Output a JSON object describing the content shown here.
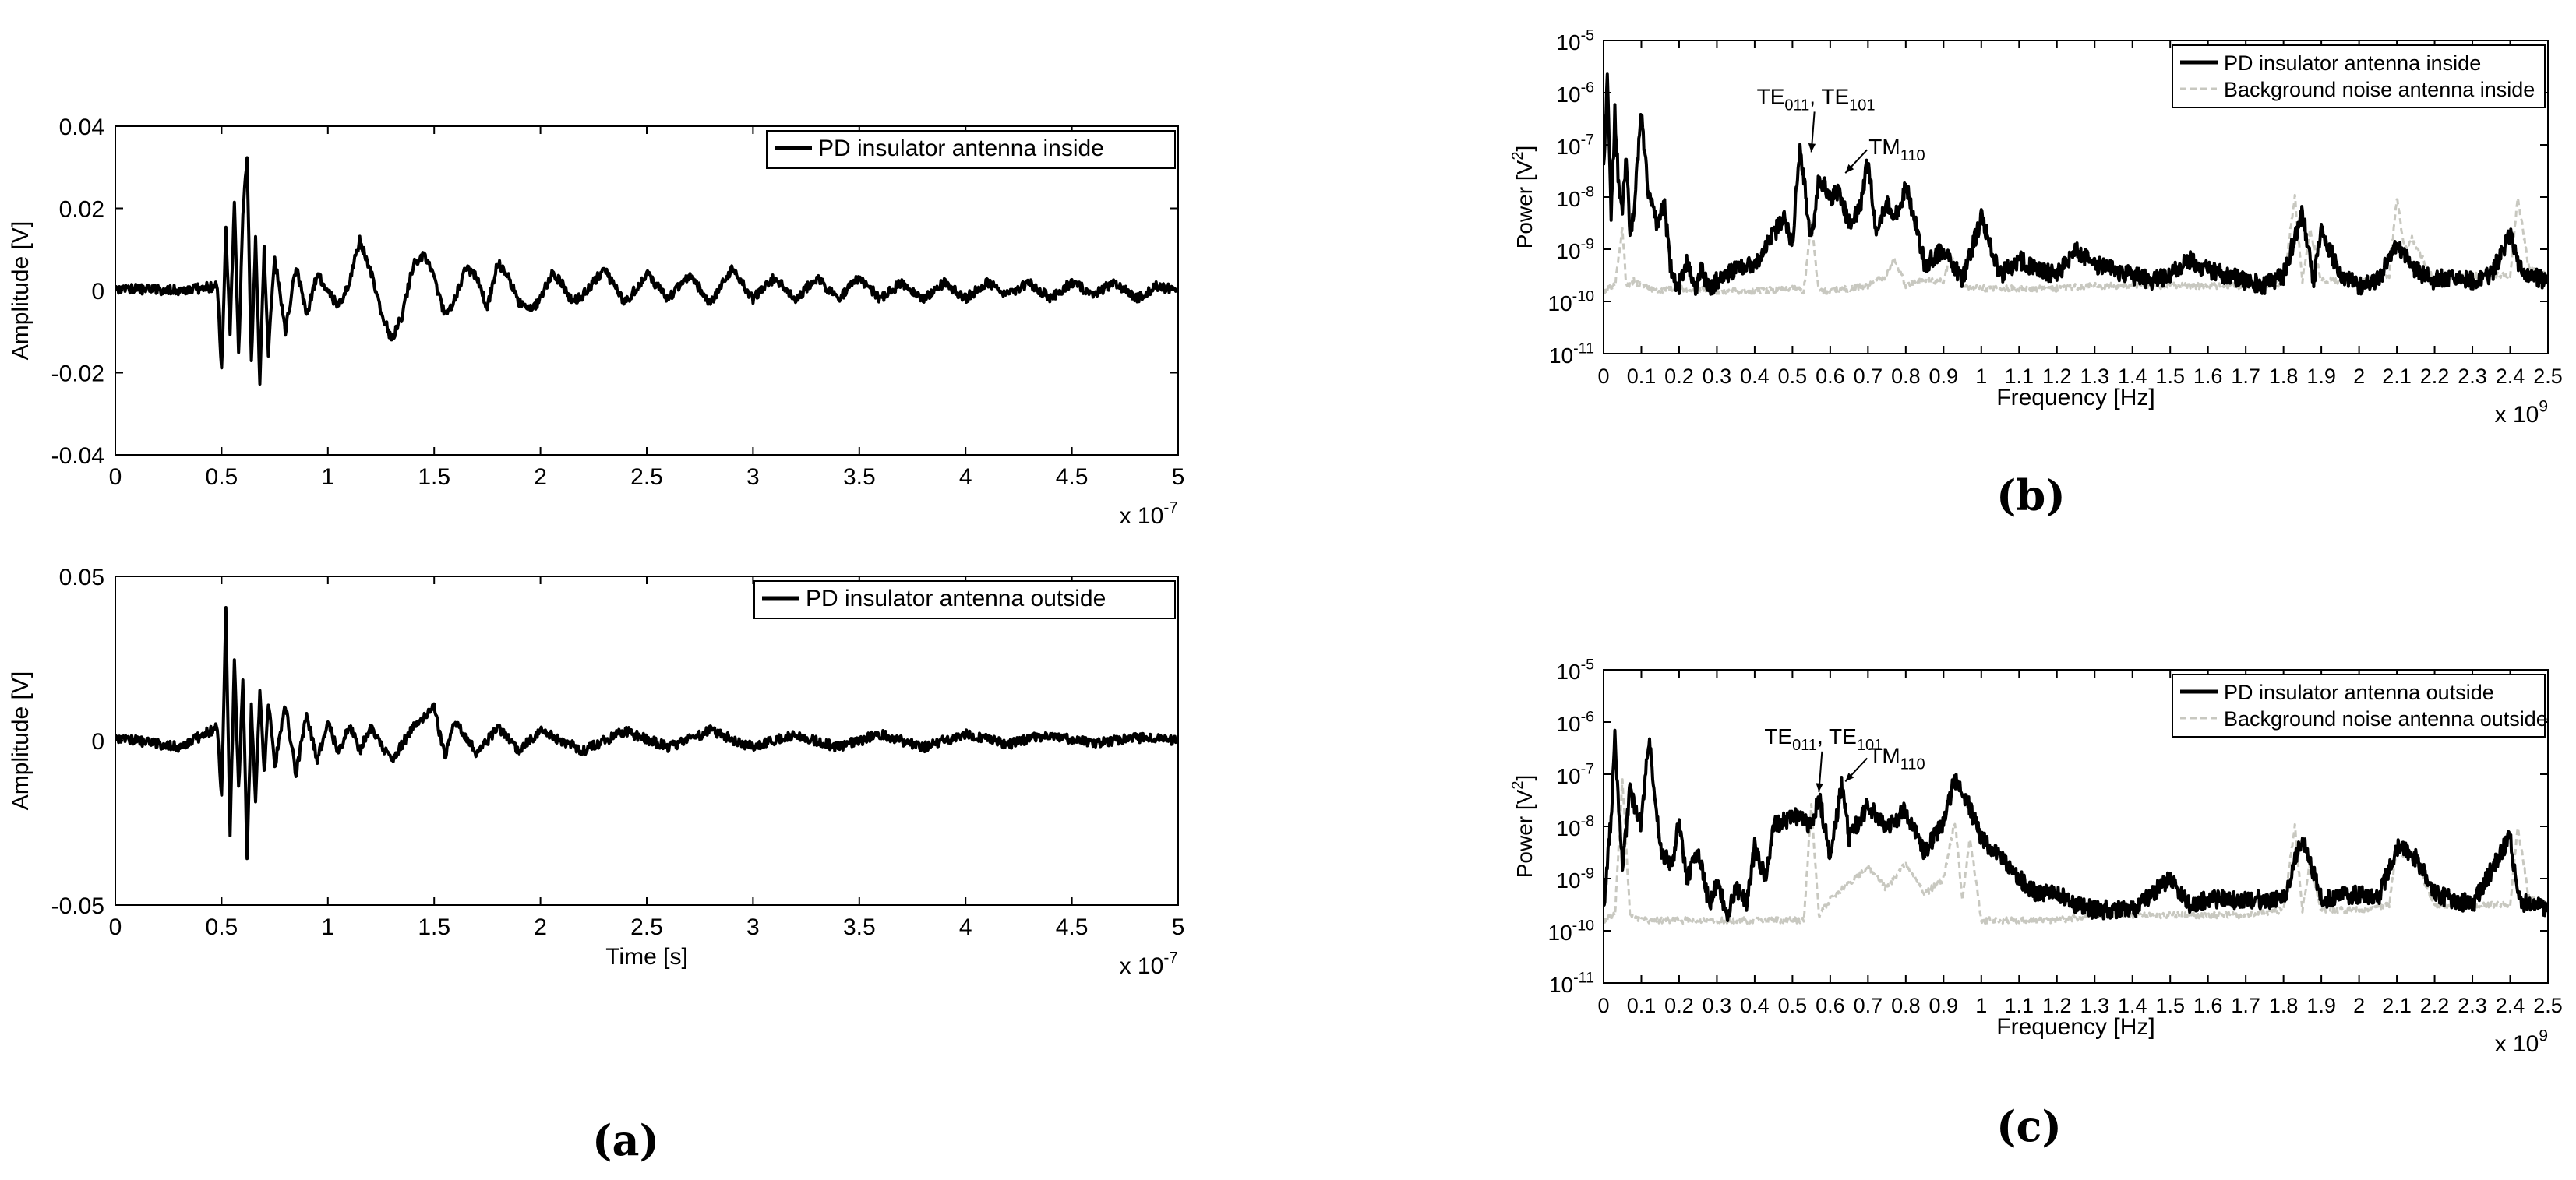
{
  "captions": {
    "a": "(a)",
    "b": "(b)",
    "c": "(c)"
  },
  "colors": {
    "signal": "#000000",
    "noise": "#c8c8c0"
  },
  "chart_data": [
    {
      "id": "time-inside",
      "type": "line",
      "xlabel": "",
      "ylabel": "Amplitude [V]",
      "xlim": [
        0,
        5
      ],
      "ylim": [
        -0.04,
        0.04
      ],
      "x_ticks": [
        "0",
        "0.5",
        "1",
        "1.5",
        "2",
        "2.5",
        "3",
        "3.5",
        "4",
        "4.5",
        "5"
      ],
      "y_ticks": [
        "-0.04",
        "-0.02",
        "0",
        "0.02",
        "0.04"
      ],
      "x_multiplier": "x 10",
      "x_multiplier_exp": "-7",
      "legend": "top-right",
      "series": [
        {
          "name": "PD insulator antenna inside",
          "x": [
            0,
            0.3,
            0.48,
            0.5,
            0.52,
            0.54,
            0.56,
            0.58,
            0.6,
            0.62,
            0.64,
            0.66,
            0.68,
            0.7,
            0.72,
            0.75,
            0.8,
            0.85,
            0.9,
            0.95,
            1.0,
            1.05,
            1.1,
            1.15,
            1.2,
            1.25,
            1.3,
            1.35,
            1.4,
            1.45,
            1.5,
            1.55,
            1.6,
            1.65,
            1.7,
            1.75,
            1.8,
            1.85,
            1.9,
            1.95,
            2.0,
            2.05,
            2.1,
            2.15,
            2.2,
            2.3,
            2.4,
            2.5,
            2.6,
            2.7,
            2.8,
            2.9,
            3.0,
            3.1,
            3.2,
            3.3,
            3.4,
            3.5,
            3.6,
            3.7,
            3.8,
            3.9,
            4.0,
            4.1,
            4.2,
            4.3,
            4.4,
            4.5,
            4.6,
            4.7,
            4.8,
            4.9,
            5.0
          ],
          "y": [
            0.0005,
            0,
            0.001,
            -0.02,
            0.015,
            -0.01,
            0.021,
            -0.016,
            0.018,
            0.033,
            -0.018,
            0.012,
            -0.023,
            0.01,
            -0.015,
            0.008,
            -0.01,
            0.006,
            -0.006,
            0.004,
            0.0,
            -0.004,
            0.002,
            0.012,
            0.005,
            -0.005,
            -0.012,
            -0.006,
            0.006,
            0.009,
            0.003,
            -0.006,
            -0.002,
            0.006,
            0.003,
            -0.004,
            0.007,
            0.003,
            -0.003,
            -0.005,
            -0.002,
            0.004,
            0.002,
            -0.003,
            -0.001,
            0.005,
            -0.003,
            0.004,
            -0.002,
            0.004,
            -0.003,
            0.005,
            -0.002,
            0.003,
            -0.002,
            0.003,
            -0.002,
            0.003,
            -0.002,
            0.002,
            -0.002,
            0.002,
            -0.002,
            0.002,
            -0.001,
            0.002,
            -0.002,
            0.002,
            -0.001,
            0.002,
            -0.002,
            0.001,
            0.0
          ]
        }
      ]
    },
    {
      "id": "time-outside",
      "type": "line",
      "xlabel": "Time [s]",
      "ylabel": "Amplitude [V]",
      "xlim": [
        0,
        5
      ],
      "ylim": [
        -0.05,
        0.05
      ],
      "x_ticks": [
        "0",
        "0.5",
        "1",
        "1.5",
        "2",
        "2.5",
        "3",
        "3.5",
        "4",
        "4.5",
        "5"
      ],
      "y_ticks": [
        "-0.05",
        "0",
        "0.05"
      ],
      "x_multiplier": "x 10",
      "x_multiplier_exp": "-7",
      "legend": "top-right",
      "series": [
        {
          "name": "PD insulator antenna outside",
          "x": [
            0,
            0.3,
            0.48,
            0.5,
            0.52,
            0.54,
            0.56,
            0.58,
            0.6,
            0.62,
            0.64,
            0.66,
            0.68,
            0.7,
            0.72,
            0.75,
            0.8,
            0.85,
            0.9,
            0.95,
            1.0,
            1.05,
            1.1,
            1.15,
            1.2,
            1.3,
            1.4,
            1.5,
            1.55,
            1.6,
            1.7,
            1.8,
            1.9,
            2.0,
            2.2,
            2.4,
            2.6,
            2.8,
            3.0,
            3.2,
            3.4,
            3.6,
            3.8,
            4.0,
            4.2,
            4.4,
            4.6,
            4.8,
            5.0
          ],
          "y": [
            0.001,
            -0.002,
            0.004,
            -0.018,
            0.04,
            -0.028,
            0.024,
            -0.015,
            0.018,
            -0.035,
            0.01,
            -0.02,
            0.015,
            -0.01,
            0.012,
            -0.008,
            0.011,
            -0.01,
            0.008,
            -0.006,
            0.006,
            -0.004,
            0.005,
            -0.003,
            0.004,
            -0.006,
            0.004,
            0.01,
            -0.005,
            0.006,
            -0.004,
            0.004,
            -0.003,
            0.003,
            -0.003,
            0.003,
            -0.002,
            0.003,
            -0.002,
            0.002,
            -0.002,
            0.002,
            -0.002,
            0.002,
            -0.001,
            0.002,
            -0.001,
            0.001,
            0.0
          ]
        }
      ]
    },
    {
      "id": "spectrum-inside",
      "type": "line",
      "xlabel": "Frequency [Hz]",
      "ylabel_text": "Power [V",
      "ylabel_sup": "2",
      "ylabel_end": "]",
      "yscale": "log",
      "xlim": [
        0,
        2.5
      ],
      "ylim_exp": [
        -11,
        -5
      ],
      "x_ticks": [
        "0",
        "0.1",
        "0.2",
        "0.3",
        "0.4",
        "0.5",
        "0.6",
        "0.7",
        "0.8",
        "0.9",
        "1",
        "1.1",
        "1.2",
        "1.3",
        "1.4",
        "1.5",
        "1.6",
        "1.7",
        "1.8",
        "1.9",
        "2",
        "2.1",
        "2.2",
        "2.3",
        "2.4",
        "2.5"
      ],
      "y_tick_base": "10",
      "y_tick_exps": [
        "-11",
        "-10",
        "-9",
        "-8",
        "-7",
        "-6",
        "-5"
      ],
      "x_multiplier": "x 10",
      "x_multiplier_exp": "9",
      "legend": "top-right",
      "annotations": [
        {
          "text": "TE",
          "sub1": "011",
          "mid": ", TE",
          "sub2": "101",
          "x": 0.55,
          "y_exp": -7.2
        },
        {
          "text": "TM",
          "sub1": "110",
          "mid": "",
          "sub2": "",
          "x": 0.64,
          "y_exp": -7.6
        }
      ],
      "series": [
        {
          "name": "PD insulator antenna inside",
          "x": [
            0,
            0.01,
            0.02,
            0.03,
            0.04,
            0.05,
            0.06,
            0.07,
            0.08,
            0.1,
            0.12,
            0.14,
            0.16,
            0.18,
            0.2,
            0.22,
            0.24,
            0.26,
            0.28,
            0.3,
            0.35,
            0.4,
            0.45,
            0.48,
            0.5,
            0.52,
            0.55,
            0.57,
            0.6,
            0.62,
            0.65,
            0.68,
            0.7,
            0.72,
            0.75,
            0.78,
            0.8,
            0.85,
            0.9,
            0.95,
            1.0,
            1.05,
            1.1,
            1.15,
            1.2,
            1.25,
            1.3,
            1.35,
            1.4,
            1.45,
            1.5,
            1.55,
            1.6,
            1.65,
            1.7,
            1.75,
            1.8,
            1.85,
            1.88,
            1.9,
            1.95,
            2.0,
            2.05,
            2.1,
            2.15,
            2.2,
            2.25,
            2.3,
            2.35,
            2.4,
            2.42,
            2.45,
            2.5
          ],
          "y_exp": [
            -7.5,
            -5.7,
            -8.5,
            -6.4,
            -7.8,
            -8.2,
            -7.2,
            -8.8,
            -8.2,
            -6.4,
            -8.0,
            -8.5,
            -8.1,
            -9.5,
            -9.7,
            -9.2,
            -9.8,
            -9.4,
            -9.8,
            -9.6,
            -9.4,
            -9.3,
            -8.7,
            -8.4,
            -8.9,
            -7.0,
            -8.9,
            -7.6,
            -8.0,
            -7.9,
            -8.5,
            -8.2,
            -7.3,
            -8.6,
            -8.1,
            -8.4,
            -7.7,
            -9.3,
            -9.0,
            -9.6,
            -8.4,
            -9.5,
            -9.2,
            -9.4,
            -9.5,
            -9.0,
            -9.3,
            -9.4,
            -9.5,
            -9.6,
            -9.5,
            -9.2,
            -9.4,
            -9.5,
            -9.6,
            -9.7,
            -9.5,
            -8.3,
            -9.6,
            -8.6,
            -9.5,
            -9.7,
            -9.6,
            -8.9,
            -9.4,
            -9.6,
            -9.5,
            -9.6,
            -9.5,
            -8.7,
            -9.3,
            -9.5,
            -9.6
          ]
        },
        {
          "name": "Background noise antenna inside",
          "x": [
            0,
            0.03,
            0.05,
            0.06,
            0.08,
            0.1,
            0.15,
            0.2,
            0.3,
            0.4,
            0.5,
            0.53,
            0.55,
            0.57,
            0.6,
            0.7,
            0.75,
            0.77,
            0.8,
            0.85,
            0.9,
            0.92,
            0.95,
            1.0,
            1.1,
            1.2,
            1.3,
            1.4,
            1.5,
            1.6,
            1.7,
            1.8,
            1.83,
            1.85,
            1.87,
            1.9,
            2.0,
            2.08,
            2.1,
            2.12,
            2.14,
            2.2,
            2.3,
            2.4,
            2.42,
            2.45,
            2.5
          ],
          "y_exp": [
            -9.8,
            -9.7,
            -8.6,
            -9.7,
            -9.6,
            -9.7,
            -9.8,
            -9.75,
            -9.8,
            -9.8,
            -9.75,
            -9.8,
            -8.5,
            -9.8,
            -9.8,
            -9.7,
            -9.5,
            -9.2,
            -9.7,
            -9.6,
            -9.6,
            -9.1,
            -9.7,
            -9.75,
            -9.75,
            -9.75,
            -9.7,
            -9.7,
            -9.7,
            -9.7,
            -9.7,
            -9.65,
            -8.0,
            -9.6,
            -8.6,
            -9.6,
            -9.6,
            -9.5,
            -8.0,
            -9.0,
            -8.8,
            -9.6,
            -9.5,
            -9.5,
            -8.0,
            -9.4,
            -9.5
          ]
        }
      ]
    },
    {
      "id": "spectrum-outside",
      "type": "line",
      "xlabel": "Frequency [Hz]",
      "ylabel_text": "Power [V",
      "ylabel_sup": "2",
      "ylabel_end": "]",
      "yscale": "log",
      "xlim": [
        0,
        2.5
      ],
      "ylim_exp": [
        -11,
        -5
      ],
      "x_ticks": [
        "0",
        "0.1",
        "0.2",
        "0.3",
        "0.4",
        "0.5",
        "0.6",
        "0.7",
        "0.8",
        "0.9",
        "1",
        "1.1",
        "1.2",
        "1.3",
        "1.4",
        "1.5",
        "1.6",
        "1.7",
        "1.8",
        "1.9",
        "2",
        "2.1",
        "2.2",
        "2.3",
        "2.4",
        "2.5"
      ],
      "y_tick_base": "10",
      "y_tick_exps": [
        "-11",
        "-10",
        "-9",
        "-8",
        "-7",
        "-6",
        "-5"
      ],
      "x_multiplier": "x 10",
      "x_multiplier_exp": "9",
      "legend": "top-right",
      "annotations": [
        {
          "text": "TE",
          "sub1": "011",
          "mid": ", TE",
          "sub2": "101",
          "x": 0.57,
          "y_exp": -7.4
        },
        {
          "text": "TM",
          "sub1": "110",
          "mid": "",
          "sub2": "",
          "x": 0.64,
          "y_exp": -7.2
        }
      ],
      "series": [
        {
          "name": "PD insulator antenna outside",
          "x": [
            0,
            0.02,
            0.03,
            0.05,
            0.07,
            0.1,
            0.12,
            0.15,
            0.18,
            0.2,
            0.22,
            0.25,
            0.28,
            0.3,
            0.33,
            0.35,
            0.38,
            0.4,
            0.43,
            0.45,
            0.5,
            0.55,
            0.57,
            0.6,
            0.63,
            0.65,
            0.7,
            0.75,
            0.8,
            0.85,
            0.9,
            0.93,
            0.95,
            1.0,
            1.05,
            1.1,
            1.15,
            1.2,
            1.25,
            1.3,
            1.4,
            1.5,
            1.55,
            1.6,
            1.7,
            1.8,
            1.85,
            1.9,
            2.0,
            2.05,
            2.1,
            2.15,
            2.2,
            2.3,
            2.4,
            2.42,
            2.45,
            2.5
          ],
          "y_exp": [
            -9.6,
            -7.8,
            -6.3,
            -8.8,
            -7.3,
            -8.0,
            -6.3,
            -8.4,
            -8.8,
            -7.9,
            -9.0,
            -8.5,
            -9.5,
            -9.1,
            -9.7,
            -9.2,
            -9.5,
            -8.4,
            -9.0,
            -8.0,
            -7.8,
            -8.0,
            -7.4,
            -8.6,
            -7.2,
            -8.2,
            -7.6,
            -8.0,
            -7.7,
            -8.5,
            -7.9,
            -7.1,
            -7.3,
            -8.2,
            -8.6,
            -9.0,
            -9.3,
            -9.3,
            -9.5,
            -9.6,
            -9.6,
            -9.0,
            -9.5,
            -9.4,
            -9.4,
            -9.4,
            -8.2,
            -9.4,
            -9.3,
            -9.4,
            -8.4,
            -8.6,
            -9.3,
            -9.5,
            -8.2,
            -9.4,
            -9.5,
            -9.6
          ]
        },
        {
          "name": "Background noise antenna outside",
          "x": [
            0,
            0.03,
            0.05,
            0.07,
            0.1,
            0.15,
            0.2,
            0.3,
            0.4,
            0.5,
            0.53,
            0.55,
            0.57,
            0.6,
            0.65,
            0.7,
            0.75,
            0.8,
            0.85,
            0.9,
            0.93,
            0.95,
            0.97,
            1.0,
            1.1,
            1.2,
            1.3,
            1.4,
            1.5,
            1.6,
            1.7,
            1.8,
            1.83,
            1.85,
            1.87,
            1.9,
            2.0,
            2.08,
            2.1,
            2.12,
            2.14,
            2.2,
            2.3,
            2.4,
            2.42,
            2.45,
            2.5
          ],
          "y_exp": [
            -9.8,
            -9.7,
            -7.1,
            -9.7,
            -9.8,
            -9.8,
            -9.8,
            -9.8,
            -9.8,
            -9.8,
            -9.8,
            -7.6,
            -9.7,
            -9.4,
            -9.1,
            -8.8,
            -9.2,
            -8.7,
            -9.3,
            -9.0,
            -7.9,
            -9.4,
            -8.2,
            -9.8,
            -9.8,
            -9.8,
            -9.7,
            -9.7,
            -9.7,
            -9.7,
            -9.7,
            -9.6,
            -8.0,
            -9.6,
            -8.7,
            -9.6,
            -9.6,
            -9.5,
            -8.4,
            -8.6,
            -8.5,
            -9.5,
            -9.5,
            -9.5,
            -8.0,
            -9.4,
            -9.5
          ]
        }
      ]
    }
  ]
}
